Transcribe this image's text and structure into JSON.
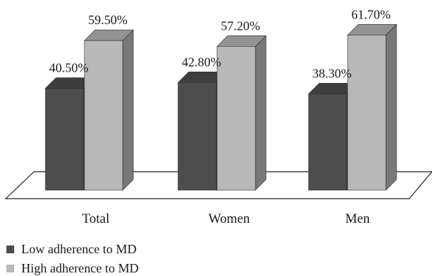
{
  "chart_data": {
    "type": "bar",
    "categories": [
      "Total",
      "Women",
      "Men"
    ],
    "series": [
      {
        "name": "Low adherence to MD",
        "values": [
          40.5,
          42.8,
          38.3
        ],
        "color": "#4d4d4d",
        "labels": [
          "40.50%",
          "42.80%",
          "38.30%"
        ]
      },
      {
        "name": "High adherence to MD",
        "values": [
          59.5,
          57.2,
          61.7
        ],
        "color": "#b8b8b8",
        "labels": [
          "59.50%",
          "57.20%",
          "61.70%"
        ]
      }
    ],
    "ylim": [
      0,
      75
    ],
    "grid": false,
    "style": "3d",
    "legend_position": "bottom-left"
  }
}
